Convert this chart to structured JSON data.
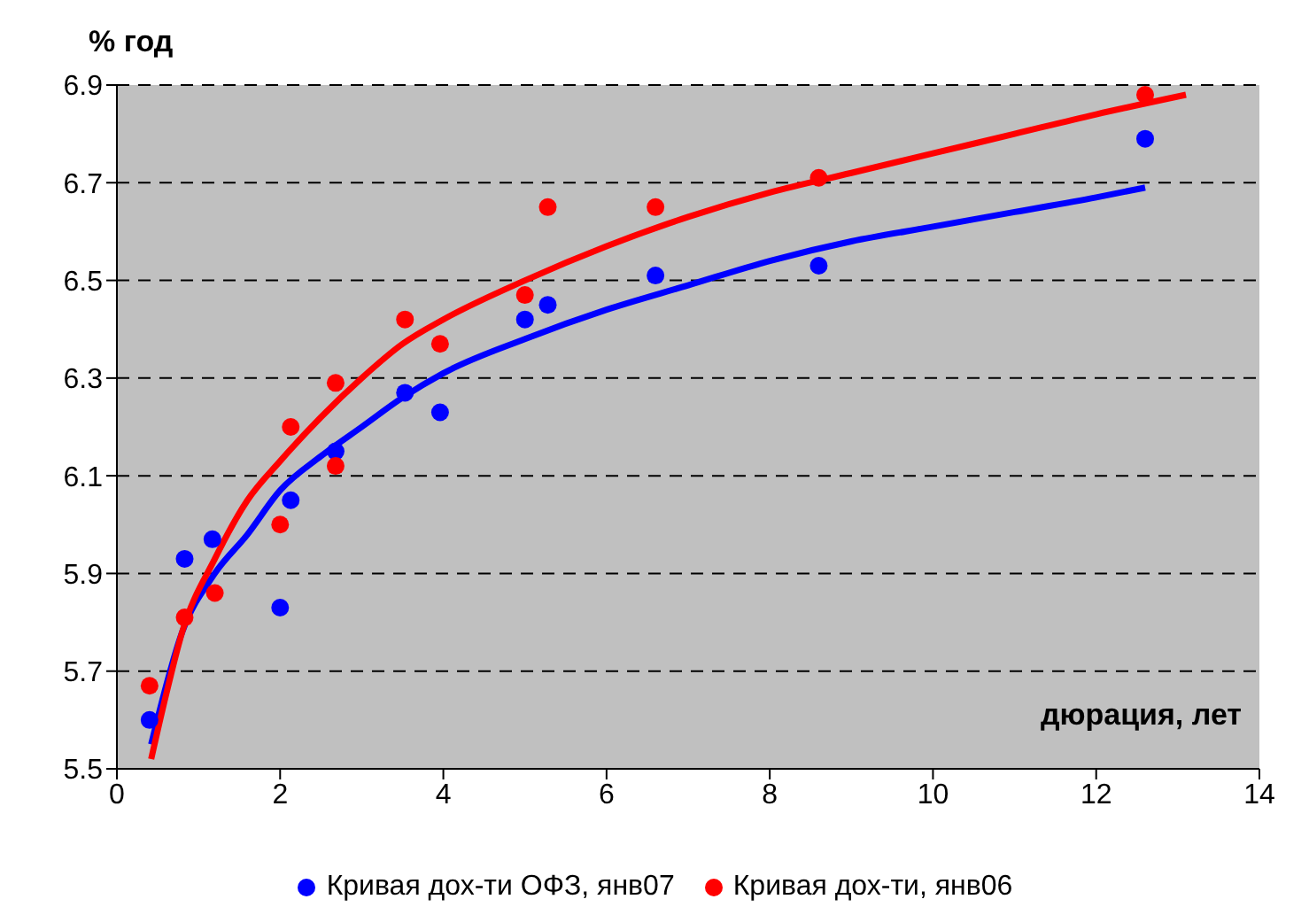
{
  "chart_data": {
    "type": "scatter",
    "ylabel": "% год",
    "xlabel": "дюрация, лет",
    "xlim": [
      0,
      14
    ],
    "xticks": [
      0,
      2,
      4,
      6,
      8,
      10,
      12,
      14
    ],
    "ylim": [
      5.5,
      6.9
    ],
    "yticks": [
      {
        "value": 5.5,
        "label": "5.5"
      },
      5.7,
      5.9,
      6.1,
      6.3,
      6.5,
      6.7,
      6.9
    ],
    "grid": "y",
    "legend": "bottom",
    "marker": "circle",
    "series": [
      {
        "name": "Кривая дох-ти ОФЗ, янв07",
        "color": "#0000ff",
        "x": [
          0.4,
          0.83,
          1.17,
          2.0,
          2.13,
          2.68,
          3.53,
          3.96,
          5.0,
          5.28,
          6.6,
          8.6,
          12.6
        ],
        "values": [
          5.6,
          5.93,
          5.97,
          5.83,
          6.05,
          6.15,
          6.27,
          6.23,
          6.42,
          6.45,
          6.51,
          6.53,
          6.79
        ]
      },
      {
        "name": "Кривая дох-ти, янв06",
        "color": "#ff0000",
        "x": [
          0.4,
          0.83,
          1.2,
          2.0,
          2.13,
          2.68,
          2.68,
          3.53,
          3.96,
          5.0,
          5.28,
          6.6,
          8.6,
          12.6
        ],
        "values": [
          5.67,
          5.81,
          5.86,
          6.0,
          6.2,
          6.29,
          6.12,
          6.42,
          6.37,
          6.47,
          6.65,
          6.65,
          6.71,
          6.88
        ]
      },
      {
        "color": "#0000ff",
        "type": "line",
        "marker": "none",
        "x": [
          0.42,
          0.8,
          1.2,
          1.6,
          2,
          2.5,
          3,
          3.5,
          4,
          5,
          6,
          7,
          8,
          9,
          10,
          11,
          12,
          12.6
        ],
        "values": [
          5.55,
          5.78,
          5.9,
          5.98,
          6.07,
          6.14,
          6.2,
          6.26,
          6.31,
          6.38,
          6.44,
          6.49,
          6.54,
          6.58,
          6.61,
          6.64,
          6.67,
          6.69
        ]
      },
      {
        "color": "#ff0000",
        "type": "line",
        "marker": "none",
        "x": [
          0.42,
          0.6,
          0.8,
          1.2,
          1.6,
          2,
          2.5,
          3,
          3.5,
          4,
          5,
          6,
          7,
          8,
          9,
          10,
          11,
          12,
          13.1
        ],
        "values": [
          5.52,
          5.65,
          5.78,
          5.93,
          6.05,
          6.13,
          6.22,
          6.3,
          6.37,
          6.42,
          6.5,
          6.57,
          6.63,
          6.68,
          6.72,
          6.76,
          6.8,
          6.84,
          6.88
        ]
      }
    ]
  }
}
